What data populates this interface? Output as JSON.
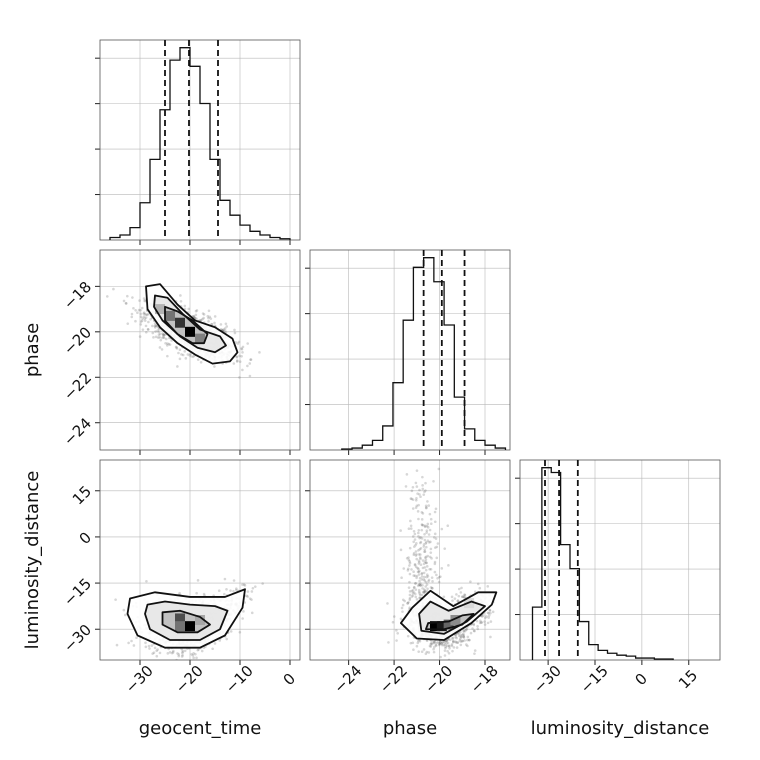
{
  "chart_data": {
    "type": "corner",
    "parameters": [
      {
        "name": "geocent_time",
        "label": "geocent_time",
        "range": [
          -38,
          2
        ],
        "ticks": [
          -30,
          -20,
          -10,
          0
        ],
        "tick_labels": [
          "−30",
          "−20",
          "−10",
          "0"
        ],
        "quantiles": [
          -25,
          -20.2,
          -14.4
        ],
        "hist": {
          "edges": [
            -36,
            -34,
            -32,
            -30,
            -28,
            -26,
            -24,
            -22,
            -20,
            -18,
            -16,
            -14,
            -12,
            -10,
            -8,
            -6,
            -4,
            -2,
            0
          ],
          "counts": [
            2,
            4,
            10,
            30,
            65,
            105,
            145,
            155,
            140,
            110,
            65,
            32,
            20,
            12,
            7,
            4,
            2,
            1
          ]
        }
      },
      {
        "name": "phase",
        "label": "phase",
        "range": [
          -25.7,
          -16.9
        ],
        "ticks": [
          -24,
          -22,
          -20,
          -18
        ],
        "tick_labels": [
          "−24",
          "−22",
          "−20",
          "−18"
        ],
        "quantiles": [
          -20.7,
          -19.9,
          -18.9
        ],
        "hist": {
          "edges": [
            -24.3,
            -23.85,
            -23.4,
            -22.95,
            -22.5,
            -22.05,
            -21.6,
            -21.15,
            -20.7,
            -20.25,
            -19.8,
            -19.35,
            -18.9,
            -18.45,
            -18.0,
            -17.55,
            -17.1
          ],
          "counts": [
            1,
            2,
            5,
            10,
            25,
            70,
            135,
            190,
            200,
            175,
            130,
            55,
            22,
            10,
            5,
            2
          ]
        }
      },
      {
        "name": "luminosity_distance",
        "label": "luminosity_distance",
        "range": [
          -39,
          25
        ],
        "ticks": [
          -30,
          -15,
          0,
          15
        ],
        "tick_labels": [
          "−30",
          "−15",
          "0",
          "15"
        ],
        "quantiles": [
          -31,
          -26.5,
          -20.5
        ],
        "hist": {
          "edges": [
            -35,
            -32,
            -29,
            -26,
            -23,
            -20,
            -17,
            -14,
            -11,
            -8,
            -5,
            -2,
            1,
            4,
            7,
            10
          ],
          "counts": [
            55,
            200,
            195,
            120,
            95,
            40,
            16,
            10,
            7,
            5,
            4,
            2,
            2,
            1,
            1
          ]
        }
      }
    ],
    "panels_2d": [
      {
        "x": "geocent_time",
        "y": "phase",
        "y_range": [
          -25.2,
          -16.4
        ],
        "y_ticks": [
          -24,
          -22,
          -20,
          -18
        ],
        "y_tick_labels": [
          "−24",
          "−22",
          "−20",
          "−18"
        ],
        "density_peak": [
          -20,
          -20
        ],
        "contours": [
          [
            [
              -28.8,
              -18.0
            ],
            [
              -26.0,
              -17.9
            ],
            [
              -22.5,
              -18.8
            ],
            [
              -19.0,
              -19.5
            ],
            [
              -15.0,
              -19.8
            ],
            [
              -11.5,
              -20.3
            ],
            [
              -10.5,
              -20.9
            ],
            [
              -12.0,
              -21.3
            ],
            [
              -15.5,
              -21.4
            ],
            [
              -19.0,
              -21.0
            ],
            [
              -22.5,
              -20.5
            ],
            [
              -26.0,
              -19.8
            ],
            [
              -28.5,
              -19.0
            ]
          ],
          [
            [
              -27.0,
              -18.4
            ],
            [
              -24.5,
              -18.5
            ],
            [
              -21.5,
              -19.2
            ],
            [
              -18.0,
              -19.9
            ],
            [
              -14.0,
              -20.2
            ],
            [
              -12.8,
              -20.6
            ],
            [
              -15.0,
              -20.9
            ],
            [
              -18.5,
              -20.7
            ],
            [
              -22.0,
              -20.2
            ],
            [
              -25.5,
              -19.5
            ],
            [
              -27.2,
              -18.9
            ]
          ],
          [
            [
              -25.0,
              -18.9
            ],
            [
              -22.5,
              -19.1
            ],
            [
              -19.5,
              -19.5
            ],
            [
              -16.5,
              -20.1
            ],
            [
              -17.2,
              -20.5
            ],
            [
              -19.5,
              -20.5
            ],
            [
              -22.5,
              -20.1
            ],
            [
              -25.0,
              -19.5
            ]
          ]
        ],
        "dense_bins": [
          [
            -20,
            -20,
            1.0
          ],
          [
            -22,
            -19.6,
            0.8
          ],
          [
            -24,
            -19.3,
            0.55
          ],
          [
            -18,
            -20.3,
            0.5
          ],
          [
            -26,
            -19.0,
            0.3
          ]
        ]
      },
      {
        "x": "geocent_time",
        "y": "luminosity_distance",
        "y_range": [
          -40,
          25
        ],
        "y_ticks": [
          -30,
          -15,
          0,
          15
        ],
        "y_tick_labels": [
          "−30",
          "−15",
          "0",
          "15"
        ],
        "density_peak": [
          -20,
          -29
        ],
        "contours": [
          [
            [
              -32.0,
              -20.0
            ],
            [
              -27.0,
              -18.0
            ],
            [
              -20.0,
              -19.5
            ],
            [
              -13.0,
              -19.5
            ],
            [
              -9.0,
              -17.0
            ],
            [
              -9.5,
              -23.0
            ],
            [
              -13.0,
              -32.0
            ],
            [
              -18.0,
              -36.0
            ],
            [
              -25.0,
              -36.0
            ],
            [
              -30.5,
              -32.0
            ],
            [
              -32.5,
              -25.0
            ]
          ],
          [
            [
              -28.5,
              -22.0
            ],
            [
              -25.0,
              -21.0
            ],
            [
              -20.0,
              -22.0
            ],
            [
              -15.0,
              -22.5
            ],
            [
              -12.5,
              -24.0
            ],
            [
              -14.0,
              -30.0
            ],
            [
              -18.0,
              -33.5
            ],
            [
              -24.0,
              -33.5
            ],
            [
              -28.0,
              -30.0
            ],
            [
              -29.0,
              -25.0
            ]
          ],
          [
            [
              -25.5,
              -24.5
            ],
            [
              -22.0,
              -24.0
            ],
            [
              -18.0,
              -26.0
            ],
            [
              -16.0,
              -28.5
            ],
            [
              -18.5,
              -31.0
            ],
            [
              -22.5,
              -31.0
            ],
            [
              -25.5,
              -28.5
            ]
          ]
        ],
        "dense_bins": [
          [
            -20,
            -29,
            1.0
          ],
          [
            -22,
            -26.5,
            0.7
          ],
          [
            -22,
            -29,
            0.55
          ],
          [
            -18,
            -27,
            0.35
          ]
        ]
      },
      {
        "x": "phase",
        "y": "luminosity_distance",
        "y_range": [
          -40,
          25
        ],
        "y_ticks": [
          -30,
          -15,
          0,
          15
        ],
        "y_tick_labels": [
          "−30",
          "−15",
          "0",
          "15"
        ],
        "density_peak": [
          -20,
          -29
        ],
        "contours": [
          [
            [
              -21.2,
              -23.0
            ],
            [
              -20.4,
              -17.5
            ],
            [
              -19.4,
              -22.5
            ],
            [
              -18.3,
              -18.0
            ],
            [
              -17.5,
              -18.0
            ],
            [
              -17.7,
              -22.0
            ],
            [
              -18.6,
              -28.0
            ],
            [
              -19.8,
              -33.5
            ],
            [
              -21.0,
              -33.0
            ],
            [
              -21.7,
              -28.0
            ]
          ],
          [
            [
              -20.9,
              -25.0
            ],
            [
              -20.4,
              -21.0
            ],
            [
              -19.6,
              -24.0
            ],
            [
              -18.6,
              -21.0
            ],
            [
              -18.0,
              -22.5
            ],
            [
              -18.8,
              -27.5
            ],
            [
              -19.8,
              -31.5
            ],
            [
              -20.8,
              -30.5
            ]
          ],
          [
            [
              -20.5,
              -28.0
            ],
            [
              -19.6,
              -27.5
            ],
            [
              -19.0,
              -25.5
            ],
            [
              -18.5,
              -25.0
            ],
            [
              -19.0,
              -28.5
            ],
            [
              -19.8,
              -30.0
            ],
            [
              -20.6,
              -30.0
            ]
          ]
        ],
        "dense_bins": [
          [
            -20.2,
            -29,
            1.0
          ],
          [
            -19.9,
            -29,
            0.9
          ],
          [
            -19.6,
            -28.5,
            0.6
          ],
          [
            -19.3,
            -27,
            0.45
          ],
          [
            -18.7,
            -21.5,
            0.15
          ]
        ]
      }
    ]
  }
}
